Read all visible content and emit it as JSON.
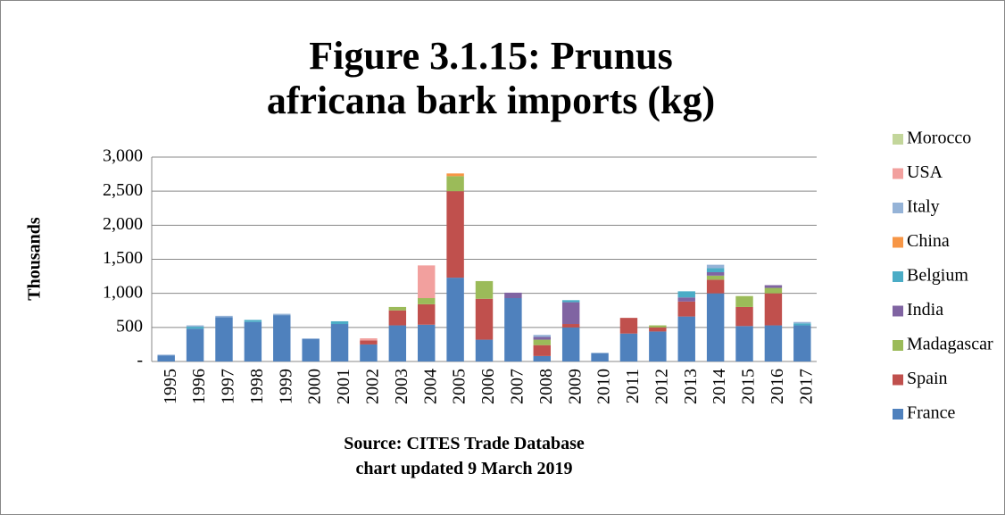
{
  "chart_data": {
    "type": "bar",
    "stacked": true,
    "title": "Figure 3.1.15: Prunus africana bark imports (kg)",
    "ylabel": "Thousands",
    "caption": [
      "Source: CITES Trade Database",
      "chart updated 9 March 2019"
    ],
    "categories": [
      "1995",
      "1996",
      "1997",
      "1998",
      "1999",
      "2000",
      "2001",
      "2002",
      "2003",
      "2004",
      "2005",
      "2006",
      "2007",
      "2008",
      "2009",
      "2010",
      "2011",
      "2012",
      "2013",
      "2014",
      "2015",
      "2016",
      "2017"
    ],
    "ylim": [
      0,
      3000
    ],
    "yticks": [
      {
        "value": 0,
        "label": "-"
      },
      500,
      {
        "value": 1000,
        "label": "1,000"
      },
      {
        "value": 1500,
        "label": "1,500"
      },
      {
        "value": 2000,
        "label": "2,000"
      },
      {
        "value": 2500,
        "label": "2,500"
      },
      {
        "value": 3000,
        "label": "3,000"
      }
    ],
    "grid": true,
    "legend": "right",
    "series": [
      {
        "name": "France",
        "color": "#4f81bd",
        "values": [
          90,
          480,
          650,
          580,
          680,
          330,
          550,
          250,
          530,
          540,
          1230,
          320,
          930,
          80,
          500,
          120,
          410,
          440,
          660,
          1000,
          520,
          530,
          530
        ]
      },
      {
        "name": "Spain",
        "color": "#c0504d",
        "values": [
          0,
          0,
          0,
          0,
          0,
          0,
          0,
          60,
          220,
          300,
          1270,
          600,
          0,
          160,
          50,
          0,
          230,
          60,
          220,
          200,
          280,
          470,
          0
        ]
      },
      {
        "name": "Madagascar",
        "color": "#9bbb59",
        "values": [
          0,
          0,
          0,
          0,
          0,
          0,
          0,
          0,
          50,
          90,
          220,
          260,
          0,
          80,
          0,
          0,
          0,
          30,
          0,
          60,
          160,
          80,
          0
        ]
      },
      {
        "name": "India",
        "color": "#8064a2",
        "values": [
          0,
          0,
          0,
          0,
          0,
          0,
          0,
          0,
          0,
          0,
          0,
          0,
          80,
          40,
          320,
          0,
          0,
          0,
          60,
          50,
          0,
          40,
          0
        ]
      },
      {
        "name": "Belgium",
        "color": "#4bacc6",
        "values": [
          0,
          30,
          0,
          30,
          0,
          0,
          40,
          0,
          0,
          0,
          0,
          0,
          0,
          0,
          30,
          0,
          0,
          0,
          90,
          60,
          0,
          0,
          30
        ]
      },
      {
        "name": "China",
        "color": "#f79646",
        "values": [
          0,
          0,
          0,
          0,
          0,
          0,
          0,
          0,
          0,
          0,
          40,
          0,
          0,
          0,
          0,
          0,
          0,
          0,
          0,
          0,
          0,
          0,
          0
        ]
      },
      {
        "name": "Italy",
        "color": "#95b3d7",
        "values": [
          10,
          20,
          20,
          0,
          20,
          10,
          0,
          0,
          0,
          0,
          0,
          0,
          0,
          30,
          0,
          10,
          0,
          0,
          0,
          50,
          0,
          0,
          20
        ]
      },
      {
        "name": "USA",
        "color": "#f2a09e",
        "values": [
          0,
          0,
          0,
          0,
          0,
          0,
          0,
          30,
          0,
          480,
          0,
          0,
          0,
          0,
          0,
          0,
          0,
          0,
          0,
          0,
          0,
          0,
          0
        ]
      },
      {
        "name": "Morocco",
        "color": "#c3d69b",
        "values": [
          0,
          0,
          0,
          0,
          0,
          0,
          0,
          0,
          0,
          0,
          0,
          0,
          0,
          0,
          0,
          0,
          0,
          0,
          0,
          0,
          0,
          0,
          0
        ]
      }
    ]
  }
}
